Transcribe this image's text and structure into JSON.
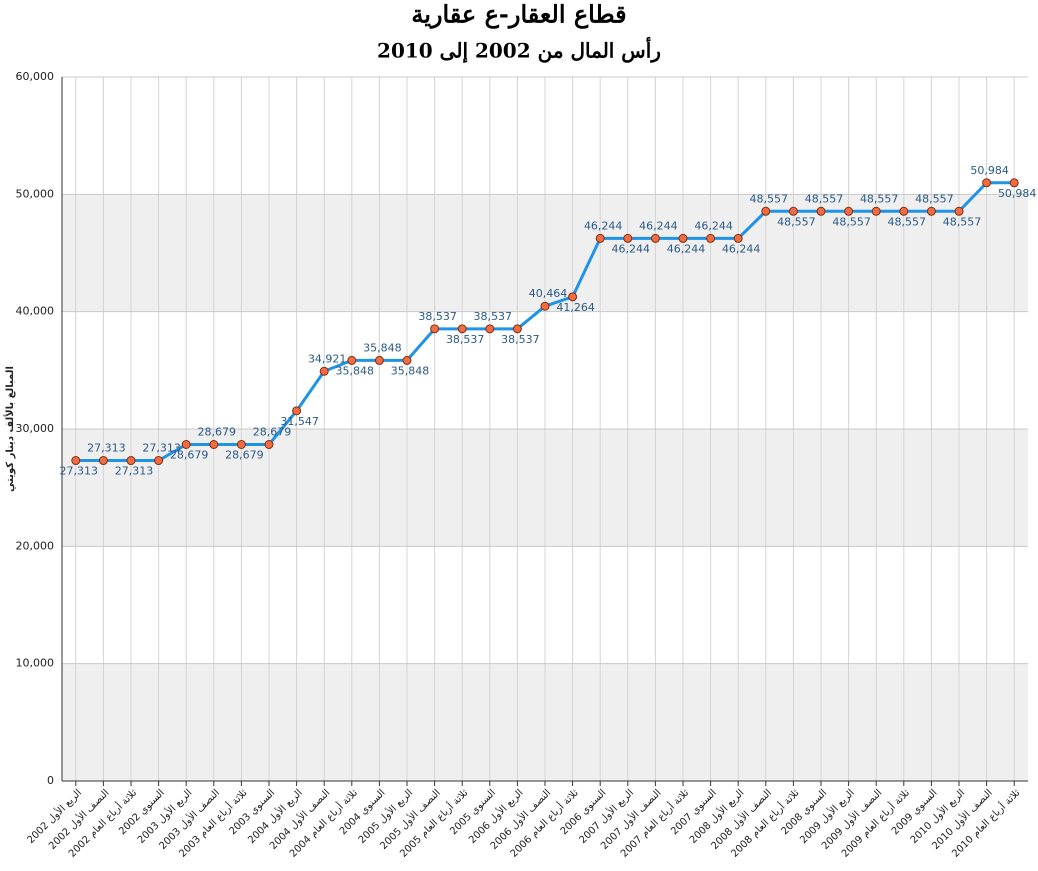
{
  "chart_data": {
    "type": "line",
    "title": "قطاع العقار-ع عقارية",
    "subtitle": "رأس المال من 2002 إلى 2010",
    "y_label": "المبالغ بالألف دينار كويتي",
    "categories": [
      "الربع الأول 2002",
      "النصف الأول 2002",
      "ثلاثة أرباع العام 2002",
      "السنوي 2002",
      "الربع الأول 2003",
      "النصف الأول 2003",
      "ثلاثة أرباع العام 2003",
      "السنوي 2003",
      "الربع الأول 2004",
      "النصف الأول 2004",
      "ثلاثة أرباع العام 2004",
      "السنوي 2004",
      "الربع الأول 2005",
      "النصف الأول 2005",
      "ثلاثة أرباع العام 2005",
      "السنوي 2005",
      "الربع الأول 2006",
      "النصف الأول 2006",
      "ثلاثة أرباع العام 2006",
      "السنوي 2006",
      "الربع الأول 2007",
      "النصف الأول 2007",
      "ثلاثة أرباع العام 2007",
      "السنوي 2007",
      "الربع الأول 2008",
      "النصف الأول 2008",
      "ثلاثة أرباع العام 2008",
      "السنوي 2008",
      "الربع الأول 2009",
      "النصف الأول 2009",
      "ثلاثة أرباع العام 2009",
      "السنوي 2009",
      "الربع الأول 2010",
      "النصف الأول 2010",
      "ثلاثة أرباع العام 2010"
    ],
    "values": [
      27313,
      27313,
      27313,
      27313,
      28679,
      28679,
      28679,
      28679,
      31547,
      34921,
      35848,
      35848,
      35848,
      38537,
      38537,
      38537,
      38537,
      40464,
      41264,
      46244,
      46244,
      46244,
      46244,
      46244,
      46244,
      48557,
      48557,
      48557,
      48557,
      48557,
      48557,
      48557,
      48557,
      50984,
      50984
    ],
    "value_labels": [
      "27,313",
      "27,313",
      "27,313",
      "27,313",
      "28,679",
      "28,679",
      "28,679",
      "28,679",
      "31,547",
      "34,921",
      "35,848",
      "35,848",
      "35,848",
      "38,537",
      "38,537",
      "38,537",
      "38,537",
      "40,464",
      "41,264",
      "46,244",
      "46,244",
      "46,244",
      "46,244",
      "46,244",
      "46,244",
      "48,557",
      "48,557",
      "48,557",
      "48,557",
      "48,557",
      "48,557",
      "48,557",
      "48,557",
      "50,984",
      "50,984"
    ],
    "color": "#1f93e6",
    "marker_color": "#f26b43",
    "ylim": [
      0,
      60000
    ],
    "yticks": [
      0,
      {
        "value": 10000,
        "label": "10,000"
      },
      {
        "value": 20000,
        "label": "20,000"
      },
      {
        "value": 30000,
        "label": "30,000"
      },
      {
        "value": 40000,
        "label": "40,000"
      },
      {
        "value": 50000,
        "label": "50,000"
      },
      {
        "value": 60000,
        "label": "60,000"
      }
    ],
    "grid": true
  }
}
